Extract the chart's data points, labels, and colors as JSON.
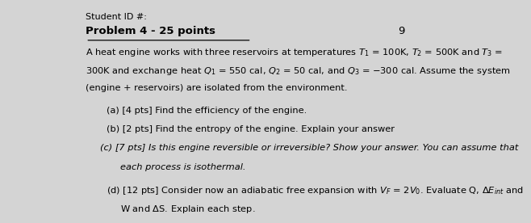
{
  "bg_color": "#d4d4d4",
  "header": "Student ID #:",
  "title": "Problem 4 - 25 points",
  "page_num": "9",
  "part_a": "(a) [4 pts] Find the efficiency of the engine.",
  "part_b": "(b) [2 pts] Find the entropy of the engine. Explain your answer",
  "part_c1": "(c) [7 pts] Is this engine reversible or irreversible? Show your answer. You can assume that",
  "part_c2": "each process is isothermal.",
  "font_size_title": 9.5,
  "font_size_body": 8.2,
  "font_size_header": 8.0
}
